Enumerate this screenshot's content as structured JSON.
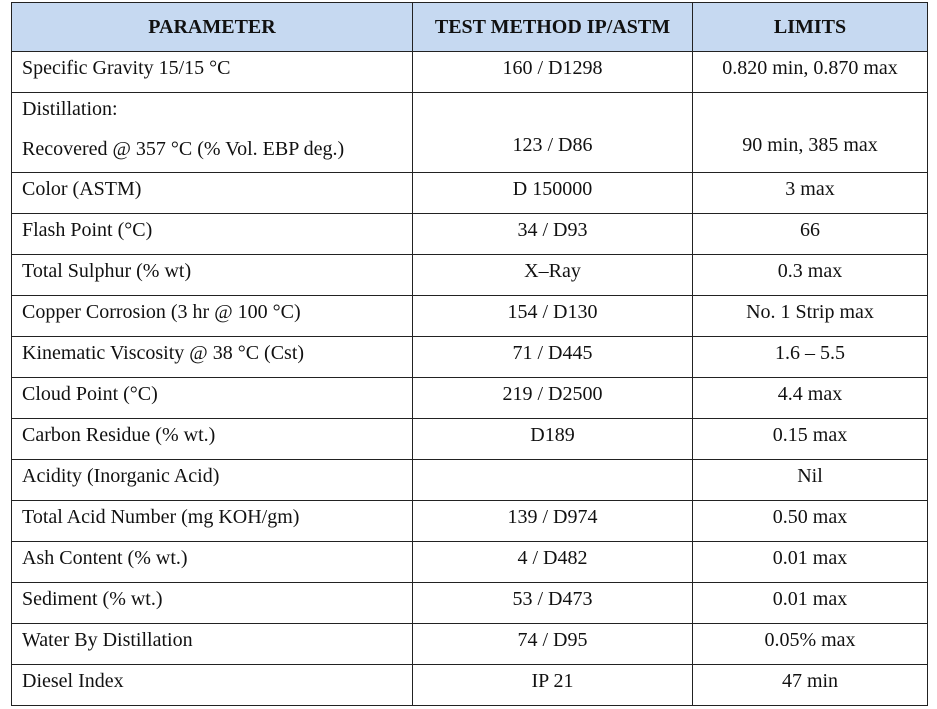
{
  "table": {
    "header": [
      "PARAMETER",
      "TEST METHOD IP/ASTM",
      "LIMITS"
    ],
    "rows": [
      {
        "parameter": [
          "Specific Gravity 15/15 °C"
        ],
        "method": "160 / D1298",
        "limits": "0.820 min, 0.870 max"
      },
      {
        "parameter": [
          "Distillation:",
          "Recovered @ 357 °C (% Vol. EBP deg.)"
        ],
        "method": "123 / D86",
        "limits": "90 min, 385 max"
      },
      {
        "parameter": [
          "Color (ASTM)"
        ],
        "method": "D 150000",
        "limits": "3 max"
      },
      {
        "parameter": [
          "Flash Point (°C)"
        ],
        "method": "34 / D93",
        "limits": "66"
      },
      {
        "parameter": [
          "Total Sulphur (% wt)"
        ],
        "method": "X–Ray",
        "limits": "0.3 max"
      },
      {
        "parameter": [
          "Copper Corrosion (3 hr @ 100 °C)"
        ],
        "method": "154 / D130",
        "limits": "No. 1 Strip max"
      },
      {
        "parameter": [
          "Kinematic Viscosity @ 38 °C (Cst)"
        ],
        "method": "71 / D445",
        "limits": "1.6 – 5.5"
      },
      {
        "parameter": [
          "Cloud Point (°C)"
        ],
        "method": "219 / D2500",
        "limits": "4.4 max"
      },
      {
        "parameter": [
          "Carbon Residue (% wt.)"
        ],
        "method": "D189",
        "limits": "0.15 max"
      },
      {
        "parameter": [
          "Acidity (Inorganic Acid)"
        ],
        "limits": "Nil"
      },
      {
        "parameter": [
          "Total Acid Number (mg KOH/gm)"
        ],
        "method": "139 / D974",
        "limits": "0.50 max"
      },
      {
        "parameter": [
          "Ash Content (% wt.)"
        ],
        "method": "4 / D482",
        "limits": "0.01 max"
      },
      {
        "parameter": [
          "Sediment (% wt.)"
        ],
        "method": "53 / D473",
        "limits": "0.01 max"
      },
      {
        "parameter": [
          "Water By Distillation"
        ],
        "method": "74 / D95",
        "limits": "0.05% max"
      },
      {
        "parameter": [
          "Diesel Index"
        ],
        "method": "IP 21",
        "limits": "47 min"
      }
    ]
  }
}
